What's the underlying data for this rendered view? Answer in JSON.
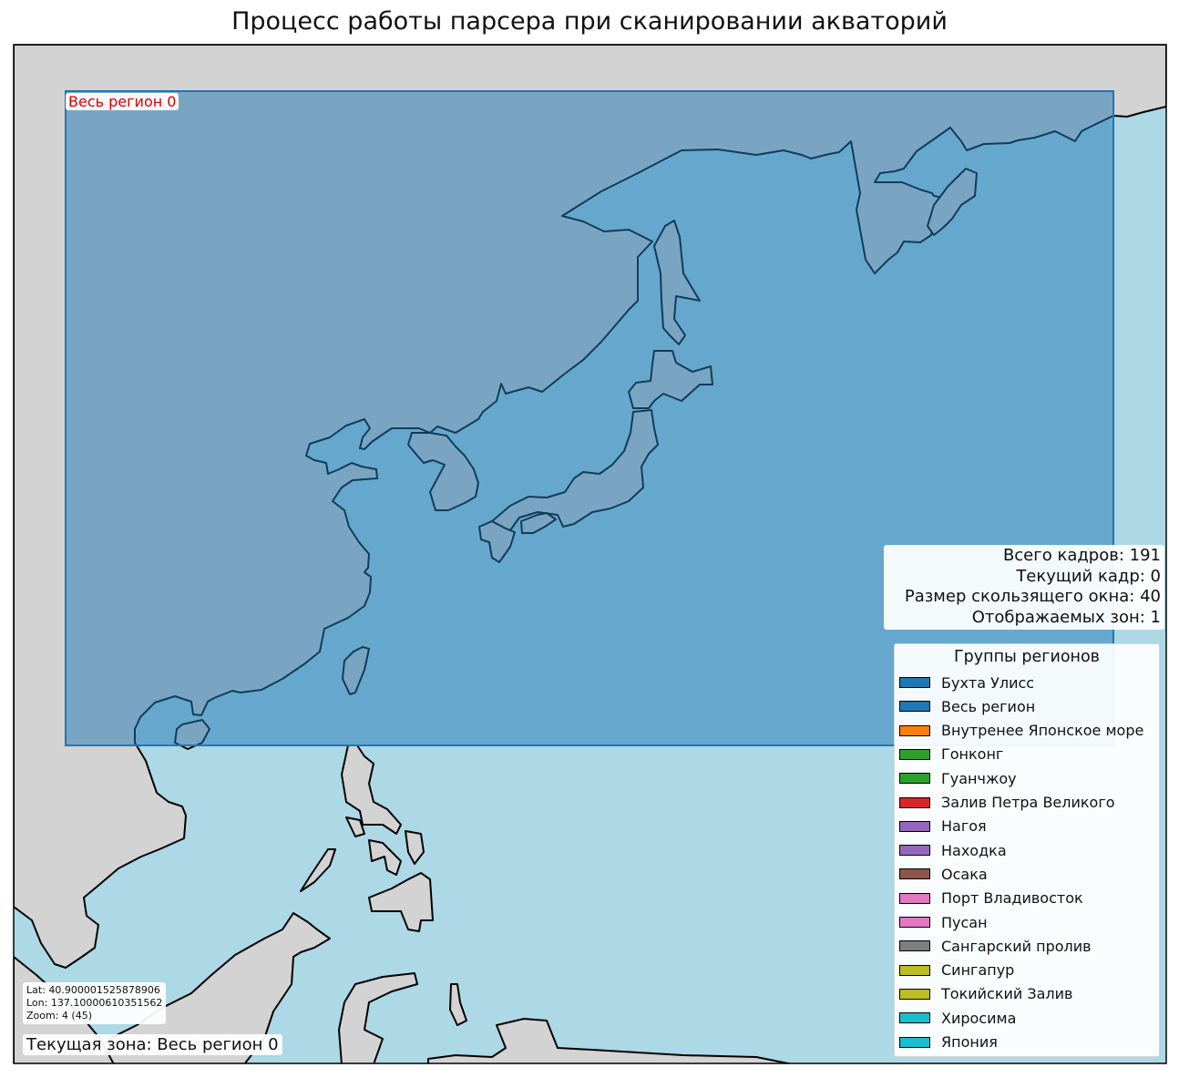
{
  "title": "Процесс работы парсера при сканировании акваторий",
  "colors": {
    "ocean": "#add8e6",
    "land": "#d3d3d3",
    "region_fill": "#1f77b4",
    "region_label": "#e00000"
  },
  "region_label": "Весь регион 0",
  "stats": {
    "total_frames": "Всего кадров: 191",
    "current_frame": "Текущий кадр: 0",
    "window_size": "Размер скользящего окна: 40",
    "zones_shown": "Отображаемых зон: 1"
  },
  "legend": {
    "title": "Группы регионов",
    "items": [
      {
        "label": "Бухта Улисс",
        "color": "#1f77b4"
      },
      {
        "label": "Весь регион",
        "color": "#1f77b4"
      },
      {
        "label": "Внутренее Японское море",
        "color": "#ff7f0e"
      },
      {
        "label": "Гонконг",
        "color": "#2ca02c"
      },
      {
        "label": "Гуанчжоу",
        "color": "#2ca02c"
      },
      {
        "label": "Залив Петра Великого",
        "color": "#d62728"
      },
      {
        "label": "Нагоя",
        "color": "#9467bd"
      },
      {
        "label": "Находка",
        "color": "#9467bd"
      },
      {
        "label": "Осака",
        "color": "#8c564b"
      },
      {
        "label": "Порт Владивосток",
        "color": "#e377c2"
      },
      {
        "label": "Пусан",
        "color": "#e377c2"
      },
      {
        "label": "Сангарский пролив",
        "color": "#7f7f7f"
      },
      {
        "label": "Сингапур",
        "color": "#bcbd22"
      },
      {
        "label": "Токийский Залив",
        "color": "#bcbd22"
      },
      {
        "label": "Хиросима",
        "color": "#17becf"
      },
      {
        "label": "Япония",
        "color": "#17becf"
      }
    ]
  },
  "coords": {
    "lat": "Lat: 40.900001525878906",
    "lon": "Lon: 137.10000610351562",
    "zoom": "Zoom: 4 (45)"
  },
  "current_zone": "Текущая зона: Весь регион 0"
}
